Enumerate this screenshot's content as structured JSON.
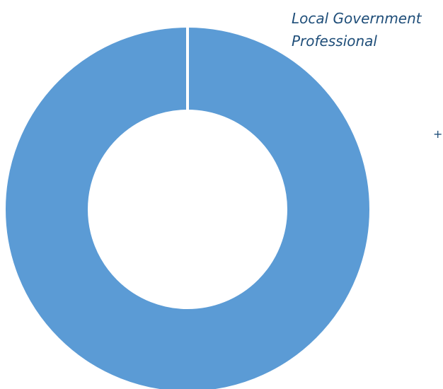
{
  "chart_data": {
    "type": "pie",
    "donut": true,
    "categories": [
      "Local Government Professional"
    ],
    "values": [
      100
    ],
    "colors": [
      "#5b9bd5"
    ],
    "title": "",
    "legend": "none"
  },
  "label": {
    "lines": [
      "Local Government",
      "Professional"
    ],
    "color": "#1f4e79"
  },
  "marker": {
    "text": "+"
  }
}
